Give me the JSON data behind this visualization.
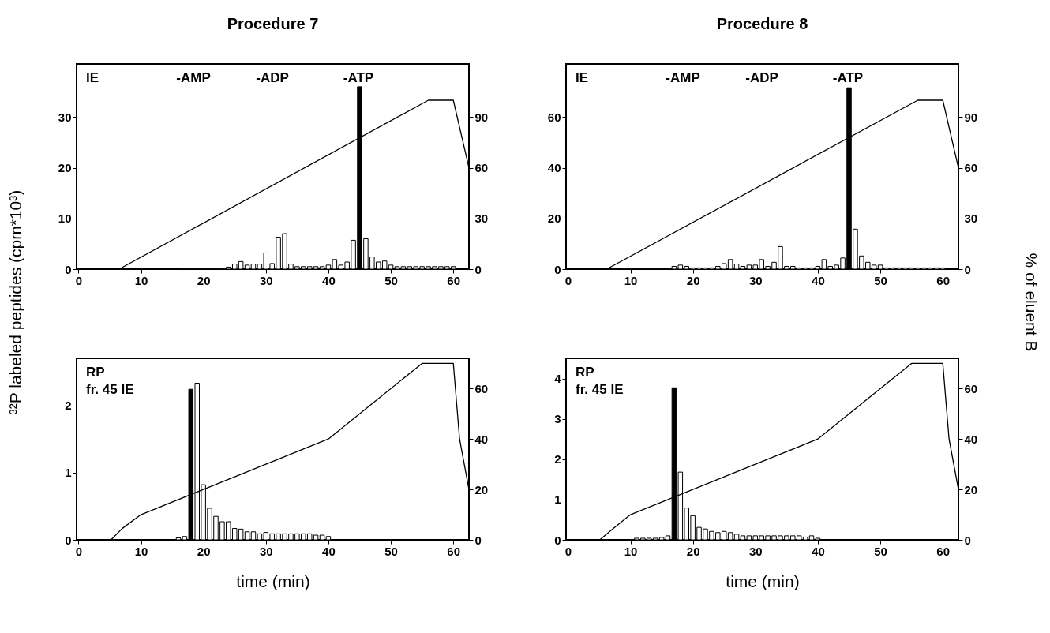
{
  "chart_data": [
    {
      "type": "bar",
      "title": "Procedure 7",
      "ylabel": "³²P labeled peptides (cpm*10³)",
      "xlim": [
        -0.3,
        62.5
      ],
      "xticks": [
        0,
        10,
        20,
        30,
        40,
        50,
        60
      ],
      "ylim": [
        0,
        40.5
      ],
      "yticks": [
        0,
        10,
        20,
        30
      ],
      "y2lim": [
        0,
        121.5
      ],
      "y2ticks": [
        0,
        30,
        60,
        90
      ],
      "grid": false,
      "marker": "none",
      "annotations": [
        "IE",
        "-AMP",
        "-ADP",
        "-ATP"
      ],
      "series": [
        {
          "x": [
            17,
            18,
            19,
            20,
            21,
            22,
            23,
            24,
            25,
            26,
            27,
            28,
            29,
            30,
            31,
            32,
            33,
            34,
            35,
            36,
            37,
            38,
            39,
            40,
            41,
            42,
            43,
            44,
            45,
            46,
            47,
            48,
            49,
            50,
            51,
            52,
            53,
            54,
            55,
            56,
            57,
            58,
            59,
            60
          ],
          "values": [
            0.1,
            0.1,
            0.1,
            0.1,
            0.1,
            0.1,
            0.1,
            0.4,
            1.0,
            1.5,
            0.8,
            1.0,
            1.0,
            3.2,
            1.1,
            6.3,
            7.0,
            1.0,
            0.5,
            0.5,
            0.5,
            0.5,
            0.5,
            0.8,
            1.9,
            0.8,
            1.4,
            5.7,
            36,
            6.0,
            2.4,
            1.4,
            1.6,
            0.8,
            0.5,
            0.5,
            0.5,
            0.5,
            0.5,
            0.5,
            0.5,
            0.5,
            0.5,
            0.5
          ],
          "colors": [
            "#ffffff",
            "#ffffff",
            "#ffffff",
            "#ffffff",
            "#ffffff",
            "#ffffff",
            "#ffffff",
            "#ffffff",
            "#ffffff",
            "#ffffff",
            "#ffffff",
            "#ffffff",
            "#ffffff",
            "#ffffff",
            "#ffffff",
            "#ffffff",
            "#ffffff",
            "#ffffff",
            "#ffffff",
            "#ffffff",
            "#ffffff",
            "#ffffff",
            "#ffffff",
            "#ffffff",
            "#ffffff",
            "#ffffff",
            "#ffffff",
            "#ffffff",
            "#000000",
            "#ffffff",
            "#ffffff",
            "#ffffff",
            "#ffffff",
            "#ffffff",
            "#ffffff",
            "#ffffff",
            "#ffffff",
            "#ffffff",
            "#ffffff",
            "#ffffff",
            "#ffffff",
            "#ffffff",
            "#ffffff",
            "#ffffff"
          ]
        },
        {
          "type": "line",
          "axis": "y2",
          "color": "#000000",
          "x": [
            0,
            6.5,
            56,
            60,
            62.5
          ],
          "values": [
            0,
            0,
            100,
            100,
            60
          ]
        }
      ]
    },
    {
      "type": "bar",
      "title": "Procedure 8",
      "y2label": "% of eluent B",
      "xlim": [
        -0.3,
        62.5
      ],
      "xticks": [
        0,
        10,
        20,
        30,
        40,
        50,
        60
      ],
      "ylim": [
        0,
        81
      ],
      "yticks": [
        0,
        20,
        40,
        60
      ],
      "y2lim": [
        0,
        121.5
      ],
      "y2ticks": [
        0,
        30,
        60,
        90
      ],
      "grid": false,
      "marker": "none",
      "annotations": [
        "IE",
        "-AMP",
        "-ADP",
        "-ATP"
      ],
      "series": [
        {
          "x": [
            9,
            10,
            11,
            12,
            13,
            14,
            15,
            16,
            17,
            18,
            19,
            20,
            21,
            22,
            23,
            24,
            25,
            26,
            27,
            28,
            29,
            30,
            31,
            32,
            33,
            34,
            35,
            36,
            37,
            38,
            39,
            40,
            41,
            42,
            43,
            44,
            45,
            46,
            47,
            48,
            49,
            50,
            51,
            52,
            53,
            54,
            55,
            56,
            57,
            58,
            59,
            60
          ],
          "values": [
            0.2,
            0.2,
            0.2,
            0.2,
            0.2,
            0.2,
            0.2,
            0.2,
            1.1,
            1.6,
            1.1,
            0.5,
            0.5,
            0.5,
            0.5,
            1.1,
            2.2,
            3.8,
            2.0,
            1.1,
            1.6,
            1.6,
            3.8,
            1.1,
            2.7,
            8.9,
            1.1,
            1.1,
            0.5,
            0.5,
            0.5,
            1.1,
            3.8,
            1.1,
            1.6,
            4.4,
            71.6,
            15.8,
            5.2,
            2.7,
            1.6,
            1.6,
            0.5,
            0.5,
            0.5,
            0.5,
            0.5,
            0.5,
            0.5,
            0.5,
            0.5,
            0.5
          ],
          "colors": [
            "#ffffff",
            "#ffffff",
            "#ffffff",
            "#ffffff",
            "#ffffff",
            "#ffffff",
            "#ffffff",
            "#ffffff",
            "#ffffff",
            "#ffffff",
            "#ffffff",
            "#ffffff",
            "#ffffff",
            "#ffffff",
            "#ffffff",
            "#ffffff",
            "#ffffff",
            "#ffffff",
            "#ffffff",
            "#ffffff",
            "#ffffff",
            "#ffffff",
            "#ffffff",
            "#ffffff",
            "#ffffff",
            "#ffffff",
            "#ffffff",
            "#ffffff",
            "#ffffff",
            "#ffffff",
            "#ffffff",
            "#ffffff",
            "#ffffff",
            "#ffffff",
            "#ffffff",
            "#ffffff",
            "#000000",
            "#ffffff",
            "#ffffff",
            "#ffffff",
            "#ffffff",
            "#ffffff",
            "#ffffff",
            "#ffffff",
            "#ffffff",
            "#ffffff",
            "#ffffff",
            "#ffffff",
            "#ffffff",
            "#ffffff",
            "#ffffff",
            "#ffffff"
          ]
        },
        {
          "type": "line",
          "axis": "y2",
          "color": "#000000",
          "x": [
            0,
            6.2,
            56,
            60,
            62.5
          ],
          "values": [
            0,
            0,
            100,
            100,
            60
          ]
        }
      ]
    },
    {
      "type": "bar",
      "xlabel": "time (min)",
      "xlim": [
        -0.3,
        62.5
      ],
      "xticks": [
        0,
        10,
        20,
        30,
        40,
        50,
        60
      ],
      "ylim": [
        0,
        2.7
      ],
      "yticks": [
        0,
        1,
        2
      ],
      "y2lim": [
        0,
        72
      ],
      "y2ticks": [
        0,
        20,
        40,
        60
      ],
      "grid": false,
      "marker": "none",
      "annotations": [
        "RP",
        "fr. 45 IE"
      ],
      "series": [
        {
          "x": [
            16,
            17,
            18,
            19,
            20,
            21,
            22,
            23,
            24,
            25,
            26,
            27,
            28,
            29,
            30,
            31,
            32,
            33,
            34,
            35,
            36,
            37,
            38,
            39,
            40
          ],
          "values": [
            0.03,
            0.05,
            2.24,
            2.33,
            0.82,
            0.47,
            0.35,
            0.27,
            0.27,
            0.17,
            0.16,
            0.12,
            0.12,
            0.09,
            0.11,
            0.09,
            0.09,
            0.09,
            0.09,
            0.09,
            0.09,
            0.09,
            0.07,
            0.07,
            0.05
          ],
          "colors": [
            "#ffffff",
            "#ffffff",
            "#000000",
            "#ffffff",
            "#ffffff",
            "#ffffff",
            "#ffffff",
            "#ffffff",
            "#ffffff",
            "#ffffff",
            "#ffffff",
            "#ffffff",
            "#ffffff",
            "#ffffff",
            "#ffffff",
            "#ffffff",
            "#ffffff",
            "#ffffff",
            "#ffffff",
            "#ffffff",
            "#ffffff",
            "#ffffff",
            "#ffffff",
            "#ffffff",
            "#ffffff"
          ]
        },
        {
          "type": "line",
          "axis": "y2",
          "color": "#000000",
          "x": [
            0,
            5.2,
            7,
            10,
            20,
            30,
            40,
            55,
            60,
            61,
            62.5
          ],
          "values": [
            0,
            0,
            4.5,
            10,
            20,
            30,
            40,
            70,
            70,
            40,
            20
          ]
        }
      ]
    },
    {
      "type": "bar",
      "xlabel": "time (min)",
      "xlim": [
        -0.3,
        62.5
      ],
      "xticks": [
        0,
        10,
        20,
        30,
        40,
        50,
        60
      ],
      "ylim": [
        0,
        4.5
      ],
      "yticks": [
        0,
        1,
        2,
        3,
        4
      ],
      "y2lim": [
        0,
        72
      ],
      "y2ticks": [
        0,
        20,
        40,
        60
      ],
      "grid": false,
      "marker": "none",
      "annotations": [
        "RP",
        "fr. 45 IE"
      ],
      "series": [
        {
          "x": [
            11,
            12,
            13,
            14,
            15,
            16,
            17,
            18,
            19,
            20,
            21,
            22,
            23,
            24,
            25,
            26,
            27,
            28,
            29,
            30,
            31,
            32,
            33,
            34,
            35,
            36,
            37,
            38,
            39,
            40
          ],
          "values": [
            0.04,
            0.04,
            0.04,
            0.04,
            0.06,
            0.1,
            3.77,
            1.68,
            0.79,
            0.6,
            0.31,
            0.27,
            0.21,
            0.18,
            0.21,
            0.18,
            0.14,
            0.1,
            0.1,
            0.1,
            0.1,
            0.1,
            0.1,
            0.1,
            0.1,
            0.1,
            0.1,
            0.07,
            0.1,
            0.04
          ],
          "colors": [
            "#ffffff",
            "#ffffff",
            "#ffffff",
            "#ffffff",
            "#ffffff",
            "#ffffff",
            "#000000",
            "#ffffff",
            "#ffffff",
            "#ffffff",
            "#ffffff",
            "#ffffff",
            "#ffffff",
            "#ffffff",
            "#ffffff",
            "#ffffff",
            "#ffffff",
            "#ffffff",
            "#ffffff",
            "#ffffff",
            "#ffffff",
            "#ffffff",
            "#ffffff",
            "#ffffff",
            "#ffffff",
            "#ffffff",
            "#ffffff",
            "#ffffff",
            "#ffffff",
            "#ffffff"
          ]
        },
        {
          "type": "line",
          "axis": "y2",
          "color": "#000000",
          "x": [
            0,
            5.1,
            7,
            10,
            20,
            30,
            40,
            55,
            60,
            61,
            62.5
          ],
          "values": [
            0,
            0,
            4,
            10,
            20,
            30,
            40,
            70,
            70,
            40,
            20
          ]
        }
      ]
    }
  ]
}
